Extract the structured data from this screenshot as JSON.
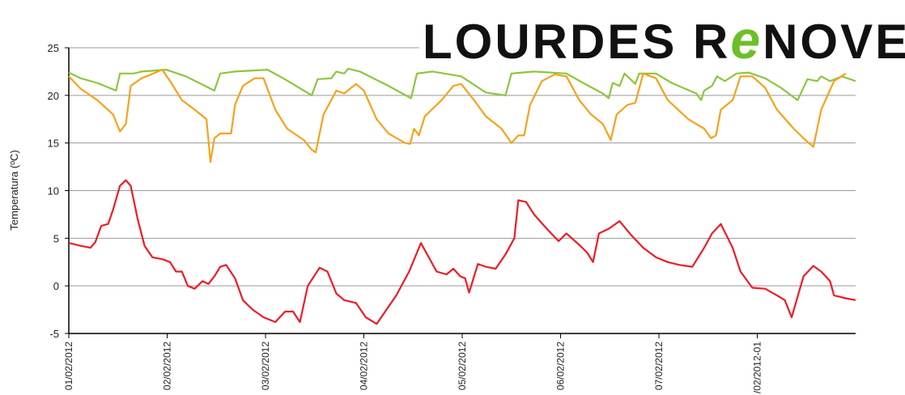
{
  "chart_data": {
    "type": "line",
    "logo": [
      "LOURDES R",
      "e",
      "NOVE"
    ],
    "y_label": "Temperatura (ºC)",
    "xlim": [
      0,
      8
    ],
    "xticks": [
      {
        "value": 0,
        "label": "01/02/2012"
      },
      {
        "value": 1,
        "label": "02/02/2012"
      },
      {
        "value": 2,
        "label": "03/02/2012"
      },
      {
        "value": 3,
        "label": "04/02/2012"
      },
      {
        "value": 4,
        "label": "05/02/2012"
      },
      {
        "value": 5,
        "label": "06/02/2012"
      },
      {
        "value": 6,
        "label": "07/02/2012"
      },
      {
        "value": 7,
        "label": "/02/2012-01"
      }
    ],
    "ylim": [
      -5,
      25
    ],
    "yticks": [
      -5,
      0,
      5,
      10,
      15,
      20,
      25
    ],
    "grid": true,
    "series": [
      {
        "color": "#8dc63f",
        "x": [
          0.0,
          0.12,
          0.29,
          0.48,
          0.52,
          0.66,
          0.74,
          0.99,
          1.19,
          1.48,
          1.54,
          1.69,
          2.02,
          2.18,
          2.47,
          2.53,
          2.67,
          2.72,
          2.8,
          2.84,
          2.96,
          3.25,
          3.48,
          3.54,
          3.7,
          3.99,
          4.24,
          4.44,
          4.5,
          4.73,
          5.06,
          5.23,
          5.43,
          5.49,
          5.53,
          5.6,
          5.65,
          5.76,
          5.8,
          5.97,
          6.13,
          6.38,
          6.43,
          6.46,
          6.54,
          6.59,
          6.67,
          6.79,
          6.91,
          7.08,
          7.24,
          7.41,
          7.51,
          7.61,
          7.65,
          7.74,
          7.86,
          8.0
        ],
        "values": [
          22.4,
          21.8,
          21.3,
          20.5,
          22.3,
          22.3,
          22.5,
          22.7,
          22,
          20.5,
          22.3,
          22.5,
          22.7,
          21.8,
          20,
          21.7,
          21.8,
          22.5,
          22.3,
          22.8,
          22.5,
          21,
          19.7,
          22.3,
          22.5,
          22,
          20.3,
          20,
          22.3,
          22.5,
          22.3,
          21.3,
          20.2,
          19.7,
          21.3,
          21,
          22.3,
          21.2,
          22.3,
          22.3,
          21.3,
          20.2,
          19.5,
          20.5,
          21,
          22,
          21.5,
          22.3,
          22.4,
          21.8,
          20.8,
          19.5,
          21.7,
          21.5,
          22,
          21.5,
          22,
          21.5
        ]
      },
      {
        "color": "#f7a21b",
        "x": [
          0.0,
          0.12,
          0.29,
          0.45,
          0.52,
          0.58,
          0.63,
          0.74,
          0.86,
          0.95,
          1.03,
          1.15,
          1.28,
          1.4,
          1.44,
          1.48,
          1.54,
          1.65,
          1.69,
          1.77,
          1.89,
          1.98,
          2.1,
          2.22,
          2.39,
          2.47,
          2.51,
          2.59,
          2.72,
          2.8,
          2.92,
          3.0,
          3.13,
          3.25,
          3.42,
          3.47,
          3.51,
          3.56,
          3.62,
          3.79,
          3.91,
          3.99,
          4.12,
          4.24,
          4.4,
          4.5,
          4.57,
          4.63,
          4.69,
          4.81,
          4.94,
          5.06,
          5.19,
          5.31,
          5.43,
          5.51,
          5.57,
          5.68,
          5.76,
          5.84,
          5.97,
          6.09,
          6.3,
          6.46,
          6.53,
          6.58,
          6.63,
          6.75,
          6.83,
          6.95,
          7.08,
          7.2,
          7.37,
          7.49,
          7.57,
          7.65,
          7.78,
          7.9
        ],
        "values": [
          22,
          20.7,
          19.5,
          18,
          16.2,
          17,
          21,
          21.8,
          22.3,
          22.7,
          21.5,
          19.5,
          18.5,
          17.5,
          13,
          15.5,
          16,
          16,
          19,
          21,
          21.8,
          21.8,
          18.5,
          16.5,
          15.3,
          14.3,
          14,
          18,
          20.5,
          20.2,
          21.2,
          20.5,
          17.5,
          16,
          15,
          14.9,
          16.5,
          15.8,
          17.8,
          19.5,
          21,
          21.2,
          19.5,
          17.8,
          16.5,
          15,
          15.8,
          15.8,
          19,
          21.5,
          22.2,
          22,
          19.5,
          18,
          17,
          15.3,
          18,
          19,
          19.2,
          22.3,
          21.8,
          19.5,
          17.5,
          16.5,
          15.5,
          15.8,
          18.5,
          19.5,
          22,
          22,
          20.8,
          18.5,
          16.5,
          15.3,
          14.6,
          18.5,
          21.5,
          22.3
        ]
      },
      {
        "color": "#ee1c25",
        "x": [
          0.0,
          0.12,
          0.22,
          0.27,
          0.33,
          0.4,
          0.45,
          0.52,
          0.58,
          0.63,
          0.7,
          0.77,
          0.85,
          0.95,
          1.03,
          1.09,
          1.15,
          1.21,
          1.28,
          1.36,
          1.42,
          1.48,
          1.54,
          1.6,
          1.69,
          1.77,
          1.87,
          1.98,
          2.1,
          2.2,
          2.28,
          2.35,
          2.43,
          2.55,
          2.63,
          2.72,
          2.8,
          2.92,
          3.02,
          3.13,
          3.23,
          3.33,
          3.46,
          3.58,
          3.66,
          3.74,
          3.84,
          3.91,
          3.98,
          4.03,
          4.07,
          4.16,
          4.24,
          4.34,
          4.44,
          4.53,
          4.57,
          4.65,
          4.73,
          4.86,
          4.98,
          5.06,
          5.19,
          5.27,
          5.33,
          5.39,
          5.49,
          5.6,
          5.72,
          5.84,
          5.97,
          6.09,
          6.21,
          6.34,
          6.46,
          6.54,
          6.63,
          6.75,
          6.83,
          6.95,
          7.08,
          7.2,
          7.28,
          7.35,
          7.47,
          7.57,
          7.65,
          7.74,
          7.78,
          7.9,
          8.0
        ],
        "values": [
          4.5,
          4.2,
          4.0,
          4.6,
          6.3,
          6.5,
          8,
          10.5,
          11.1,
          10.5,
          7,
          4.2,
          3,
          2.8,
          2.5,
          1.5,
          1.5,
          0,
          -0.3,
          0.5,
          0.2,
          1,
          2,
          2.2,
          0.8,
          -1.5,
          -2.5,
          -3.3,
          -3.8,
          -2.7,
          -2.7,
          -3.8,
          0,
          1.9,
          1.5,
          -0.8,
          -1.5,
          -1.8,
          -3.3,
          -4,
          -2.5,
          -1,
          1.5,
          4.5,
          3,
          1.5,
          1.2,
          1.8,
          1,
          0.8,
          -0.7,
          2.3,
          2,
          1.8,
          3.3,
          5,
          9,
          8.8,
          7.5,
          6,
          4.7,
          5.5,
          4.3,
          3.5,
          2.5,
          5.5,
          6,
          6.8,
          5.3,
          4,
          3,
          2.5,
          2.2,
          2,
          4,
          5.5,
          6.5,
          4,
          1.5,
          -0.2,
          -0.3,
          -1,
          -1.5,
          -3.3,
          1,
          2.1,
          1.5,
          0.5,
          -1,
          -1.3,
          -1.5
        ]
      }
    ]
  }
}
